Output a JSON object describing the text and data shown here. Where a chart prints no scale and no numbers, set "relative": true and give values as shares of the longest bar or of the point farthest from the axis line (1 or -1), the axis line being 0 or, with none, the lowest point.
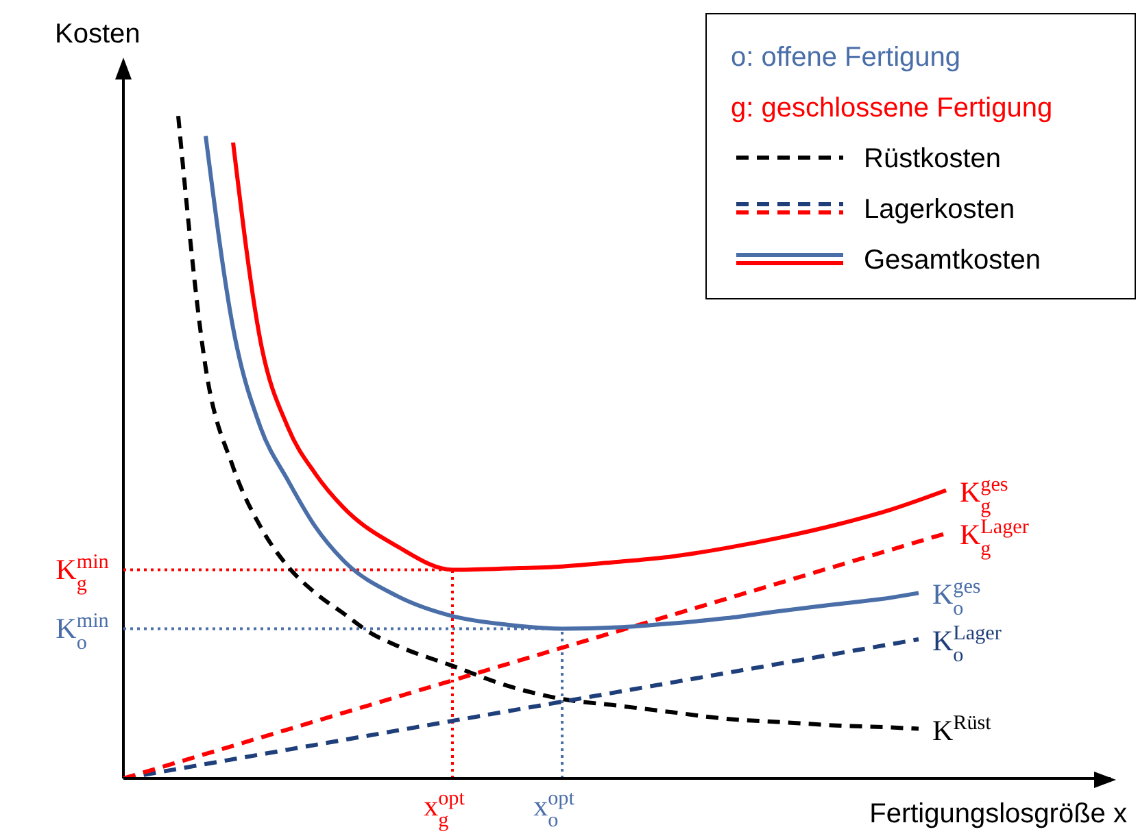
{
  "chart_data": {
    "type": "line",
    "relative": true,
    "xlabel": "Fertigungslosgröße x",
    "ylabel": "Kosten",
    "marker": "none",
    "categories": [
      null,
      null,
      null,
      null,
      null,
      null,
      null,
      null,
      null,
      null,
      null,
      null,
      null,
      null,
      null,
      null,
      null,
      null,
      null,
      null,
      null,
      null,
      null,
      null,
      null,
      null,
      null,
      null,
      null,
      null,
      null,
      null,
      null,
      null,
      null,
      null,
      null
    ],
    "series": [
      {
        "name": "K$^{Rüst}$",
        "color": "#000000",
        "line_style": "dashed",
        "values": [
          null,
          null,
          1.0,
          0.62,
          0.47,
          0.38,
          0.32,
          0.28,
          0.25,
          0.22,
          0.2,
          null,
          0.17,
          null,
          0.14,
          null,
          0.12,
          null,
          0.11,
          null,
          0.1,
          null,
          0.09,
          null,
          0.085,
          null,
          0.08,
          null,
          0.077,
          0.075,
          null,
          null,
          null,
          null,
          null,
          null,
          null
        ]
      },
      {
        "name": "K$_{o}$$^{Lager}$",
        "color": "#1f3f7a",
        "line_style": "dashed",
        "values": [
          0,
          null,
          null,
          null,
          null,
          null,
          null,
          null,
          null,
          null,
          null,
          null,
          null,
          null,
          null,
          null,
          null,
          null,
          null,
          null,
          null,
          null,
          null,
          null,
          null,
          null,
          null,
          null,
          null,
          0.21,
          null,
          null,
          null,
          null,
          null,
          null,
          null
        ]
      },
      {
        "name": "K$_{g}$$^{Lager}$",
        "color": "#ff0000",
        "line_style": "dashed",
        "values": [
          0,
          null,
          null,
          null,
          null,
          null,
          null,
          null,
          null,
          null,
          null,
          null,
          null,
          null,
          null,
          null,
          null,
          null,
          null,
          null,
          null,
          null,
          null,
          null,
          null,
          null,
          null,
          null,
          null,
          null,
          0.37,
          null,
          null,
          null,
          null,
          null,
          null
        ]
      },
      {
        "name": "K$_{o}$$^{ges}$",
        "color": "#4a6ea8",
        "line_style": "solid",
        "values": [
          null,
          null,
          null,
          0.97,
          0.68,
          0.53,
          0.45,
          0.38,
          0.33,
          null,
          0.275,
          null,
          0.245,
          null,
          0.232,
          null,
          0.226,
          null,
          0.228,
          null,
          0.234,
          null,
          0.242,
          null,
          0.253,
          null,
          0.263,
          null,
          0.273,
          0.28,
          null,
          null,
          null,
          null,
          null,
          null,
          null
        ]
      },
      {
        "name": "K$_{g}$$^{ges}$",
        "color": "#ff0000",
        "line_style": "solid",
        "values": [
          null,
          null,
          null,
          null,
          0.96,
          0.66,
          0.53,
          0.46,
          0.41,
          null,
          0.35,
          null,
          0.315,
          null,
          0.317,
          null,
          0.32,
          null,
          0.327,
          null,
          0.335,
          null,
          0.348,
          null,
          0.364,
          null,
          0.383,
          null,
          0.406,
          null,
          0.435,
          null,
          null,
          null,
          null,
          null,
          null
        ]
      }
    ],
    "ref_lines": [
      {
        "axis": "y",
        "value": 0.315,
        "label": "K$_{g}$$^{min}$",
        "color": "#ff0000",
        "line_style": "dotted"
      },
      {
        "axis": "y",
        "value": 0.226,
        "label": "K$_{o}$$^{min}$",
        "color": "#4a6ea8",
        "line_style": "dotted"
      }
    ],
    "annotations": [
      "o: offene Fertigung",
      "g: geschlossene Fertigung",
      "Rüstkosten",
      "Lagerkosten",
      "Gesamtkosten",
      "x$_{g}$$^{opt}$",
      "x$_{o}$$^{opt}$"
    ]
  }
}
